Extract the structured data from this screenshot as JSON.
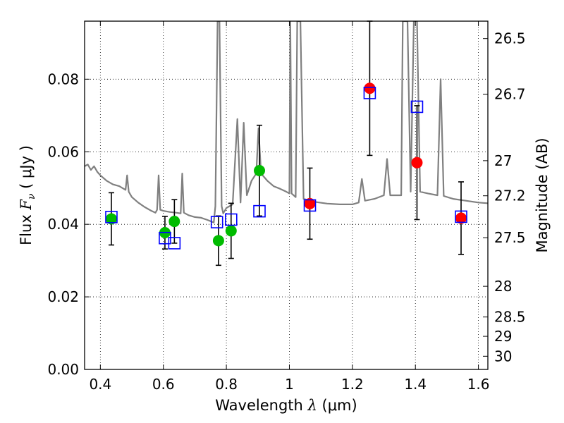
{
  "chart_data": {
    "type": "scatter",
    "xlabel": {
      "prefix": "Wavelength ",
      "symbol": "λ",
      "unit": " (μm)"
    },
    "ylabel": {
      "prefix": "Flux ",
      "symbol": "F",
      "subscript": "ν",
      "unit": " ( μJy )"
    },
    "y2label": "Magnitude (AB)",
    "xlim": [
      0.35,
      1.63
    ],
    "ylim": [
      0.0,
      0.096
    ],
    "grid": true,
    "x_ticks": [
      0.4,
      0.6,
      0.8,
      1.0,
      1.2,
      1.4,
      1.6
    ],
    "x_tick_labels": [
      "0.4",
      "0.6",
      "0.8",
      "1",
      "1.2",
      "1.4",
      "1.6"
    ],
    "y_ticks": [
      0.0,
      0.02,
      0.04,
      0.06,
      0.08
    ],
    "y_tick_labels": [
      "0.00",
      "0.02",
      "0.04",
      "0.06",
      "0.08"
    ],
    "y2_ticks": [
      {
        "label": "26.5",
        "mag": 26.5
      },
      {
        "label": "26.7",
        "mag": 26.7
      },
      {
        "label": "27",
        "mag": 27.0
      },
      {
        "label": "27.2",
        "mag": 27.2
      },
      {
        "label": "27.5",
        "mag": 27.5
      },
      {
        "label": "28",
        "mag": 28.0
      },
      {
        "label": "28.5",
        "mag": 28.5
      },
      {
        "label": "29",
        "mag": 29.0
      },
      {
        "label": "30",
        "mag": 30.0
      }
    ],
    "colors": {
      "model": "#808080",
      "green": "#00bb00",
      "red": "#ff0000",
      "box": "#0000ff",
      "errorbar": "#000000"
    },
    "series": [
      {
        "marker": "green-circle",
        "points": [
          {
            "x": 0.435,
            "y": 0.0415,
            "err": 0.0072
          },
          {
            "x": 0.605,
            "y": 0.0377,
            "err": 0.0045
          },
          {
            "x": 0.635,
            "y": 0.0408,
            "err": 0.006
          },
          {
            "x": 0.775,
            "y": 0.0355,
            "err": 0.0068
          },
          {
            "x": 0.815,
            "y": 0.0382,
            "err": 0.0076
          },
          {
            "x": 0.905,
            "y": 0.0548,
            "err": 0.0125
          }
        ]
      },
      {
        "marker": "red-circle",
        "points": [
          {
            "x": 1.065,
            "y": 0.0457,
            "err": 0.0098
          },
          {
            "x": 1.255,
            "y": 0.0775,
            "err": 0.0185
          },
          {
            "x": 1.405,
            "y": 0.057,
            "err": 0.0157
          },
          {
            "x": 1.545,
            "y": 0.0417,
            "err": 0.01
          }
        ]
      },
      {
        "marker": "blue-square",
        "points": [
          {
            "x": 0.435,
            "y": 0.042
          },
          {
            "x": 0.605,
            "y": 0.0362
          },
          {
            "x": 0.635,
            "y": 0.0348
          },
          {
            "x": 0.77,
            "y": 0.0406
          },
          {
            "x": 0.815,
            "y": 0.0413
          },
          {
            "x": 0.905,
            "y": 0.0436
          },
          {
            "x": 1.065,
            "y": 0.0452
          },
          {
            "x": 1.255,
            "y": 0.0762
          },
          {
            "x": 1.405,
            "y": 0.0724
          },
          {
            "x": 1.545,
            "y": 0.0421
          }
        ]
      }
    ],
    "model_spectrum": [
      [
        0.35,
        0.056
      ],
      [
        0.36,
        0.0565
      ],
      [
        0.37,
        0.055
      ],
      [
        0.38,
        0.056
      ],
      [
        0.39,
        0.0545
      ],
      [
        0.4,
        0.0535
      ],
      [
        0.42,
        0.052
      ],
      [
        0.44,
        0.051
      ],
      [
        0.46,
        0.0505
      ],
      [
        0.47,
        0.05
      ],
      [
        0.48,
        0.0495
      ],
      [
        0.485,
        0.0535
      ],
      [
        0.49,
        0.049
      ],
      [
        0.5,
        0.0475
      ],
      [
        0.52,
        0.046
      ],
      [
        0.54,
        0.0448
      ],
      [
        0.56,
        0.0438
      ],
      [
        0.575,
        0.0432
      ],
      [
        0.58,
        0.044
      ],
      [
        0.585,
        0.0535
      ],
      [
        0.59,
        0.044
      ],
      [
        0.6,
        0.0437
      ],
      [
        0.62,
        0.0434
      ],
      [
        0.64,
        0.0432
      ],
      [
        0.655,
        0.043
      ],
      [
        0.66,
        0.054
      ],
      [
        0.665,
        0.0432
      ],
      [
        0.68,
        0.0425
      ],
      [
        0.7,
        0.042
      ],
      [
        0.72,
        0.0418
      ],
      [
        0.74,
        0.0412
      ],
      [
        0.76,
        0.0405
      ],
      [
        0.765,
        0.045
      ],
      [
        0.772,
        0.096
      ],
      [
        0.778,
        0.096
      ],
      [
        0.785,
        0.045
      ],
      [
        0.79,
        0.043
      ],
      [
        0.8,
        0.0445
      ],
      [
        0.81,
        0.045
      ],
      [
        0.82,
        0.0455
      ],
      [
        0.835,
        0.069
      ],
      [
        0.845,
        0.046
      ],
      [
        0.855,
        0.068
      ],
      [
        0.865,
        0.048
      ],
      [
        0.88,
        0.052
      ],
      [
        0.895,
        0.054
      ],
      [
        0.902,
        0.0665
      ],
      [
        0.91,
        0.054
      ],
      [
        0.93,
        0.052
      ],
      [
        0.95,
        0.0505
      ],
      [
        0.97,
        0.0498
      ],
      [
        0.99,
        0.049
      ],
      [
        1.0,
        0.0485
      ],
      [
        1.003,
        0.096
      ],
      [
        1.007,
        0.0485
      ],
      [
        1.02,
        0.0475
      ],
      [
        1.025,
        0.096
      ],
      [
        1.035,
        0.096
      ],
      [
        1.045,
        0.047
      ],
      [
        1.08,
        0.0462
      ],
      [
        1.12,
        0.0457
      ],
      [
        1.16,
        0.0455
      ],
      [
        1.2,
        0.0455
      ],
      [
        1.22,
        0.046
      ],
      [
        1.23,
        0.0525
      ],
      [
        1.24,
        0.0465
      ],
      [
        1.27,
        0.047
      ],
      [
        1.3,
        0.048
      ],
      [
        1.31,
        0.058
      ],
      [
        1.32,
        0.048
      ],
      [
        1.34,
        0.048
      ],
      [
        1.355,
        0.048
      ],
      [
        1.36,
        0.096
      ],
      [
        1.375,
        0.096
      ],
      [
        1.385,
        0.049
      ],
      [
        1.395,
        0.096
      ],
      [
        1.405,
        0.096
      ],
      [
        1.415,
        0.049
      ],
      [
        1.44,
        0.0485
      ],
      [
        1.47,
        0.048
      ],
      [
        1.48,
        0.08
      ],
      [
        1.49,
        0.0478
      ],
      [
        1.52,
        0.047
      ],
      [
        1.56,
        0.0465
      ],
      [
        1.6,
        0.046
      ],
      [
        1.63,
        0.0458
      ]
    ]
  }
}
